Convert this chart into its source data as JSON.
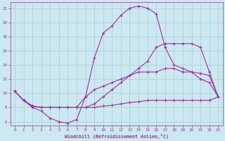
{
  "xlabel": "Windchill (Refroidissement éolien,°C)",
  "background_color": "#cce8f0",
  "grid_color": "#aaccd8",
  "line_color": "#993399",
  "xlim": [
    -0.5,
    23.5
  ],
  "ylim": [
    5.5,
    22.8
  ],
  "xticks": [
    0,
    1,
    2,
    3,
    4,
    5,
    6,
    7,
    8,
    9,
    10,
    11,
    12,
    13,
    14,
    15,
    16,
    17,
    18,
    19,
    20,
    21,
    22,
    23
  ],
  "yticks": [
    6,
    8,
    10,
    12,
    14,
    16,
    18,
    20,
    22
  ],
  "line1_x": [
    0,
    1,
    2,
    3,
    4,
    5,
    6,
    7,
    8,
    9,
    10,
    11,
    12,
    13,
    14,
    15,
    16,
    17,
    18,
    19,
    20,
    21,
    22,
    23
  ],
  "line1_y": [
    10.3,
    9.0,
    8.0,
    7.5,
    6.5,
    6.0,
    5.8,
    6.3,
    9.5,
    15.0,
    18.5,
    19.5,
    21.0,
    22.0,
    22.3,
    22.0,
    21.2,
    16.5,
    14.0,
    13.5,
    13.0,
    12.0,
    11.5,
    9.5
  ],
  "line2_x": [
    0,
    1,
    2,
    3,
    4,
    5,
    6,
    7,
    8,
    9,
    10,
    11,
    12,
    13,
    14,
    15,
    16,
    17,
    18,
    19,
    20,
    21,
    22,
    23
  ],
  "line2_y": [
    10.3,
    9.0,
    8.2,
    8.0,
    8.0,
    8.0,
    8.0,
    8.0,
    8.0,
    8.5,
    9.5,
    10.5,
    11.5,
    12.5,
    13.5,
    14.5,
    16.5,
    17.0,
    17.0,
    17.0,
    17.0,
    16.5,
    13.0,
    9.5
  ],
  "line3_x": [
    0,
    1,
    2,
    3,
    4,
    5,
    6,
    7,
    8,
    9,
    10,
    11,
    12,
    13,
    14,
    15,
    16,
    17,
    18,
    19,
    20,
    21,
    22,
    23
  ],
  "line3_y": [
    10.3,
    9.0,
    8.2,
    8.0,
    8.0,
    8.0,
    8.0,
    8.0,
    8.0,
    8.0,
    8.2,
    8.3,
    8.5,
    8.7,
    8.8,
    9.0,
    9.0,
    9.0,
    9.0,
    9.0,
    9.0,
    9.0,
    9.0,
    9.5
  ],
  "line4_x": [
    0,
    1,
    2,
    3,
    4,
    5,
    6,
    7,
    8,
    9,
    10,
    11,
    12,
    13,
    14,
    15,
    16,
    17,
    18,
    19,
    20,
    21,
    22,
    23
  ],
  "line4_y": [
    10.3,
    9.0,
    8.2,
    8.0,
    8.0,
    8.0,
    8.0,
    8.0,
    9.5,
    10.5,
    11.0,
    11.5,
    12.0,
    12.5,
    13.0,
    13.0,
    13.0,
    13.5,
    13.5,
    13.0,
    13.0,
    12.8,
    12.5,
    9.5
  ]
}
